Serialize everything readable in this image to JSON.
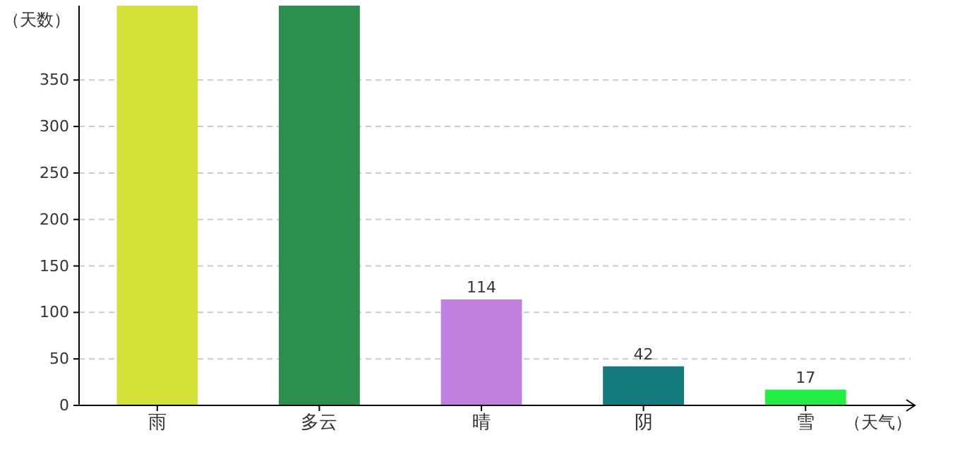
{
  "chart_data": {
    "type": "bar",
    "xlabel": "（天气）",
    "ylabel": "（天数）",
    "categories": [
      "雨",
      "多云",
      "晴",
      "阴",
      "雪"
    ],
    "values": [
      430,
      430,
      114,
      42,
      17
    ],
    "colors": [
      "#d4e137",
      "#2b8f4e",
      "#c080e0",
      "#137b7b",
      "#22ee44"
    ],
    "value_labels": [
      null,
      null,
      "114",
      "42",
      "17"
    ],
    "ylim": [
      0,
      430
    ],
    "yticks": [
      0,
      50,
      100,
      150,
      200,
      250,
      300,
      350
    ],
    "grid": "y"
  }
}
